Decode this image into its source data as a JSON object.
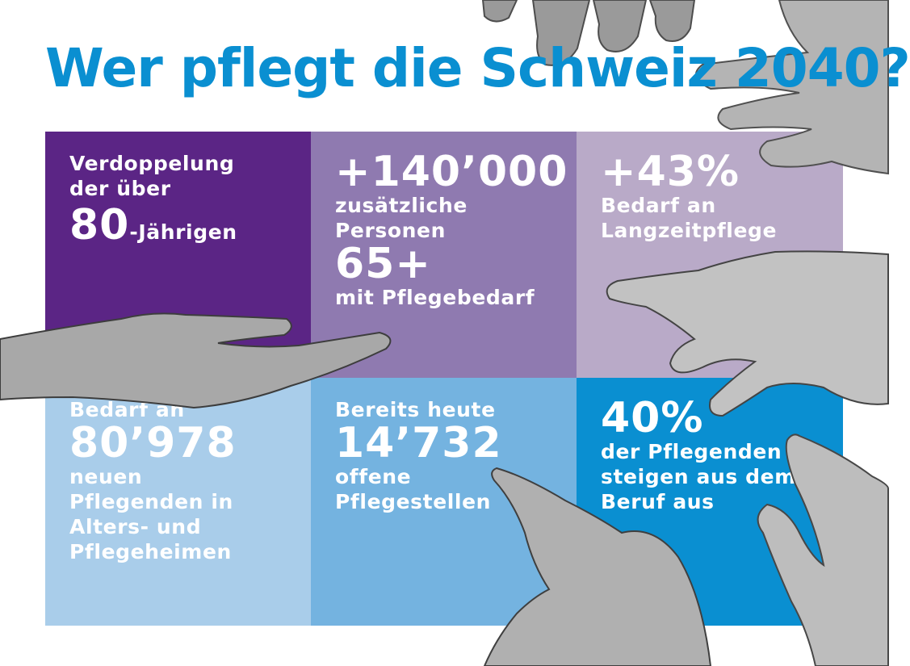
{
  "title": "Wer pflegt die Schweiz 2040?",
  "colors": {
    "title": "#0a8fd1",
    "tile_1": "#5b2585",
    "tile_2": "#8f7ab0",
    "tile_3": "#b9aac8",
    "tile_4": "#a9cdea",
    "tile_5": "#74b3e0",
    "tile_6": "#0a8fd1"
  },
  "tiles": {
    "t1": {
      "line1": "Verdoppelung",
      "line2": "der über",
      "number": "80",
      "suffix": "-Jährigen"
    },
    "t2": {
      "number": "+140’000",
      "line1": "zusätzliche",
      "line2": "Personen",
      "number2": "65+",
      "line3": "mit Pflegebedarf"
    },
    "t3": {
      "number": "+43%",
      "line1": "Bedarf an",
      "line2": "Langzeitpflege"
    },
    "t4": {
      "line1": "Bedarf an",
      "number": "80’978",
      "line2": "neuen",
      "line3": "Pflegenden in",
      "line4": "Alters- und",
      "line5": "Pflegeheimen"
    },
    "t5": {
      "line1": "Bereits heute",
      "number": "14’732",
      "line2": "offene",
      "line3": "Pflegestellen"
    },
    "t6": {
      "number": "40%",
      "line1": "der Pflegenden",
      "line2": "steigen aus dem",
      "line3": "Beruf aus"
    }
  },
  "icons": [
    "reaching-hand-icon",
    "open-palm-hand-icon",
    "pointing-hand-icon",
    "elderly-hand-icon"
  ]
}
